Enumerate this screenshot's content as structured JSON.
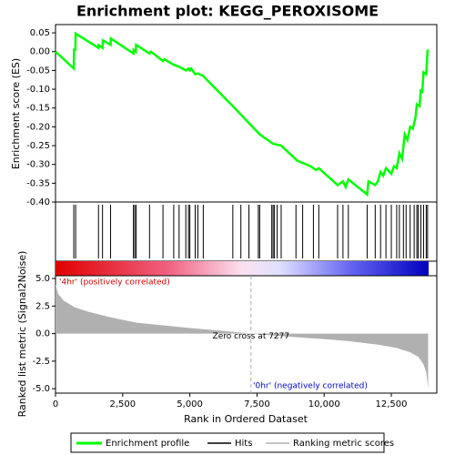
{
  "chart_data": [
    {
      "type": "line",
      "title": "Enrichment plot: KEGG_PEROXISOME",
      "ylabel": "Enrichment score (ES)",
      "xlim": [
        0,
        14193
      ],
      "ylim": [
        -0.4,
        0.072
      ],
      "yticks": [
        {
          "value": 0.05,
          "label": "0.05"
        },
        {
          "value": 0,
          "label": "0.00"
        },
        {
          "value": -0.05,
          "label": "-0.05"
        },
        {
          "value": -0.1,
          "label": "-0.10"
        },
        {
          "value": -0.15,
          "label": "-0.15"
        },
        {
          "value": -0.2,
          "label": "-0.20"
        },
        {
          "value": -0.25,
          "label": "-0.25"
        },
        {
          "value": -0.3,
          "label": "-0.30"
        },
        {
          "value": -0.35,
          "label": "-0.35"
        },
        {
          "value": -0.4,
          "label": "-0.40"
        }
      ],
      "series": [
        {
          "name": "Enrichment profile",
          "color": "#00ff00",
          "x": [
            0,
            680,
            690,
            740,
            750,
            1600,
            1610,
            1750,
            1760,
            2050,
            2060,
            2900,
            2910,
            2990,
            3000,
            3500,
            3550,
            4000,
            4050,
            4400,
            4600,
            4850,
            4950,
            5000,
            5050,
            5200,
            5300,
            5500,
            6600,
            7200,
            7600,
            8100,
            8400,
            9000,
            9500,
            9700,
            9800,
            10500,
            10700,
            10800,
            10900,
            11600,
            11650,
            11900,
            12000,
            12100,
            12200,
            12300,
            12500,
            12600,
            12700,
            12800,
            12900,
            13000,
            13100,
            13200,
            13300,
            13400,
            13450,
            13550,
            13600,
            13650,
            13700,
            13800,
            13850,
            13870
          ],
          "values": [
            0,
            -0.045,
            0.005,
            0.005,
            0.048,
            0.01,
            0.017,
            0.01,
            0.03,
            0.018,
            0.035,
            -0.005,
            0.005,
            0,
            0.018,
            -0.005,
            0,
            -0.025,
            -0.02,
            -0.035,
            -0.04,
            -0.05,
            -0.045,
            -0.05,
            -0.045,
            -0.06,
            -0.058,
            -0.065,
            -0.145,
            -0.19,
            -0.22,
            -0.245,
            -0.25,
            -0.29,
            -0.305,
            -0.315,
            -0.31,
            -0.355,
            -0.345,
            -0.36,
            -0.34,
            -0.38,
            -0.345,
            -0.355,
            -0.345,
            -0.32,
            -0.33,
            -0.31,
            -0.325,
            -0.305,
            -0.31,
            -0.27,
            -0.285,
            -0.22,
            -0.235,
            -0.2,
            -0.205,
            -0.175,
            -0.14,
            -0.145,
            -0.1,
            -0.11,
            -0.055,
            -0.06,
            0.005,
            0
          ]
        }
      ]
    },
    {
      "type": "hits",
      "xlim": [
        0,
        14193
      ],
      "series": [
        {
          "name": "Hits",
          "color": "#000000",
          "values": [
            680,
            750,
            1600,
            1750,
            2050,
            2900,
            2950,
            3000,
            3500,
            4000,
            4400,
            4600,
            4850,
            4950,
            5000,
            5200,
            5300,
            5500,
            6600,
            6900,
            7200,
            7550,
            7600,
            8050,
            8100,
            8150,
            8250,
            8400,
            8950,
            9200,
            9600,
            9800,
            10500,
            10700,
            10900,
            11600,
            11900,
            12100,
            12300,
            12500,
            12700,
            12800,
            12950,
            13050,
            13200,
            13350,
            13450,
            13500,
            13600,
            13700,
            13800,
            13850
          ]
        }
      ]
    },
    {
      "type": "area",
      "xlabel": "Rank in Ordered Dataset",
      "ylabel": "Ranked list metric (Signal2Noise)",
      "xlim": [
        0,
        14193
      ],
      "ylim": [
        -5.4,
        5.25
      ],
      "xticks": [
        0,
        {
          "value": 2500,
          "label": "2,500"
        },
        {
          "value": 5000,
          "label": "5,000"
        },
        {
          "value": 7500,
          "label": "7,500"
        },
        {
          "value": 10000,
          "label": "10,000"
        },
        {
          "value": 12500,
          "label": "12,500"
        }
      ],
      "yticks": [
        {
          "value": 5,
          "label": "5.0"
        },
        {
          "value": 2.5,
          "label": "2.5"
        },
        {
          "value": 0,
          "label": "0.0"
        },
        {
          "value": -2.5,
          "label": "-2.5"
        },
        {
          "value": -5,
          "label": "-5.0"
        }
      ],
      "zero_cross": {
        "value": 7277,
        "label": "Zero cross at 7277"
      },
      "positive_label": "'4hr' (positively correlated)",
      "negative_label": "'0hr' (negatively correlated)",
      "series": [
        {
          "name": "Ranking metric scores",
          "color": "#b0b0b0",
          "x": [
            0,
            100,
            300,
            700,
            1200,
            2000,
            3000,
            4000,
            5000,
            6000,
            7277,
            8500,
            10000,
            11000,
            12000,
            12700,
            13200,
            13500,
            13700,
            13800,
            13870
          ],
          "values": [
            4.5,
            3.6,
            3.0,
            2.4,
            2.0,
            1.5,
            1.0,
            0.75,
            0.5,
            0.3,
            0,
            -0.25,
            -0.5,
            -0.7,
            -1.0,
            -1.3,
            -1.7,
            -2.1,
            -2.8,
            -3.5,
            -5.0
          ]
        }
      ]
    }
  ]
}
